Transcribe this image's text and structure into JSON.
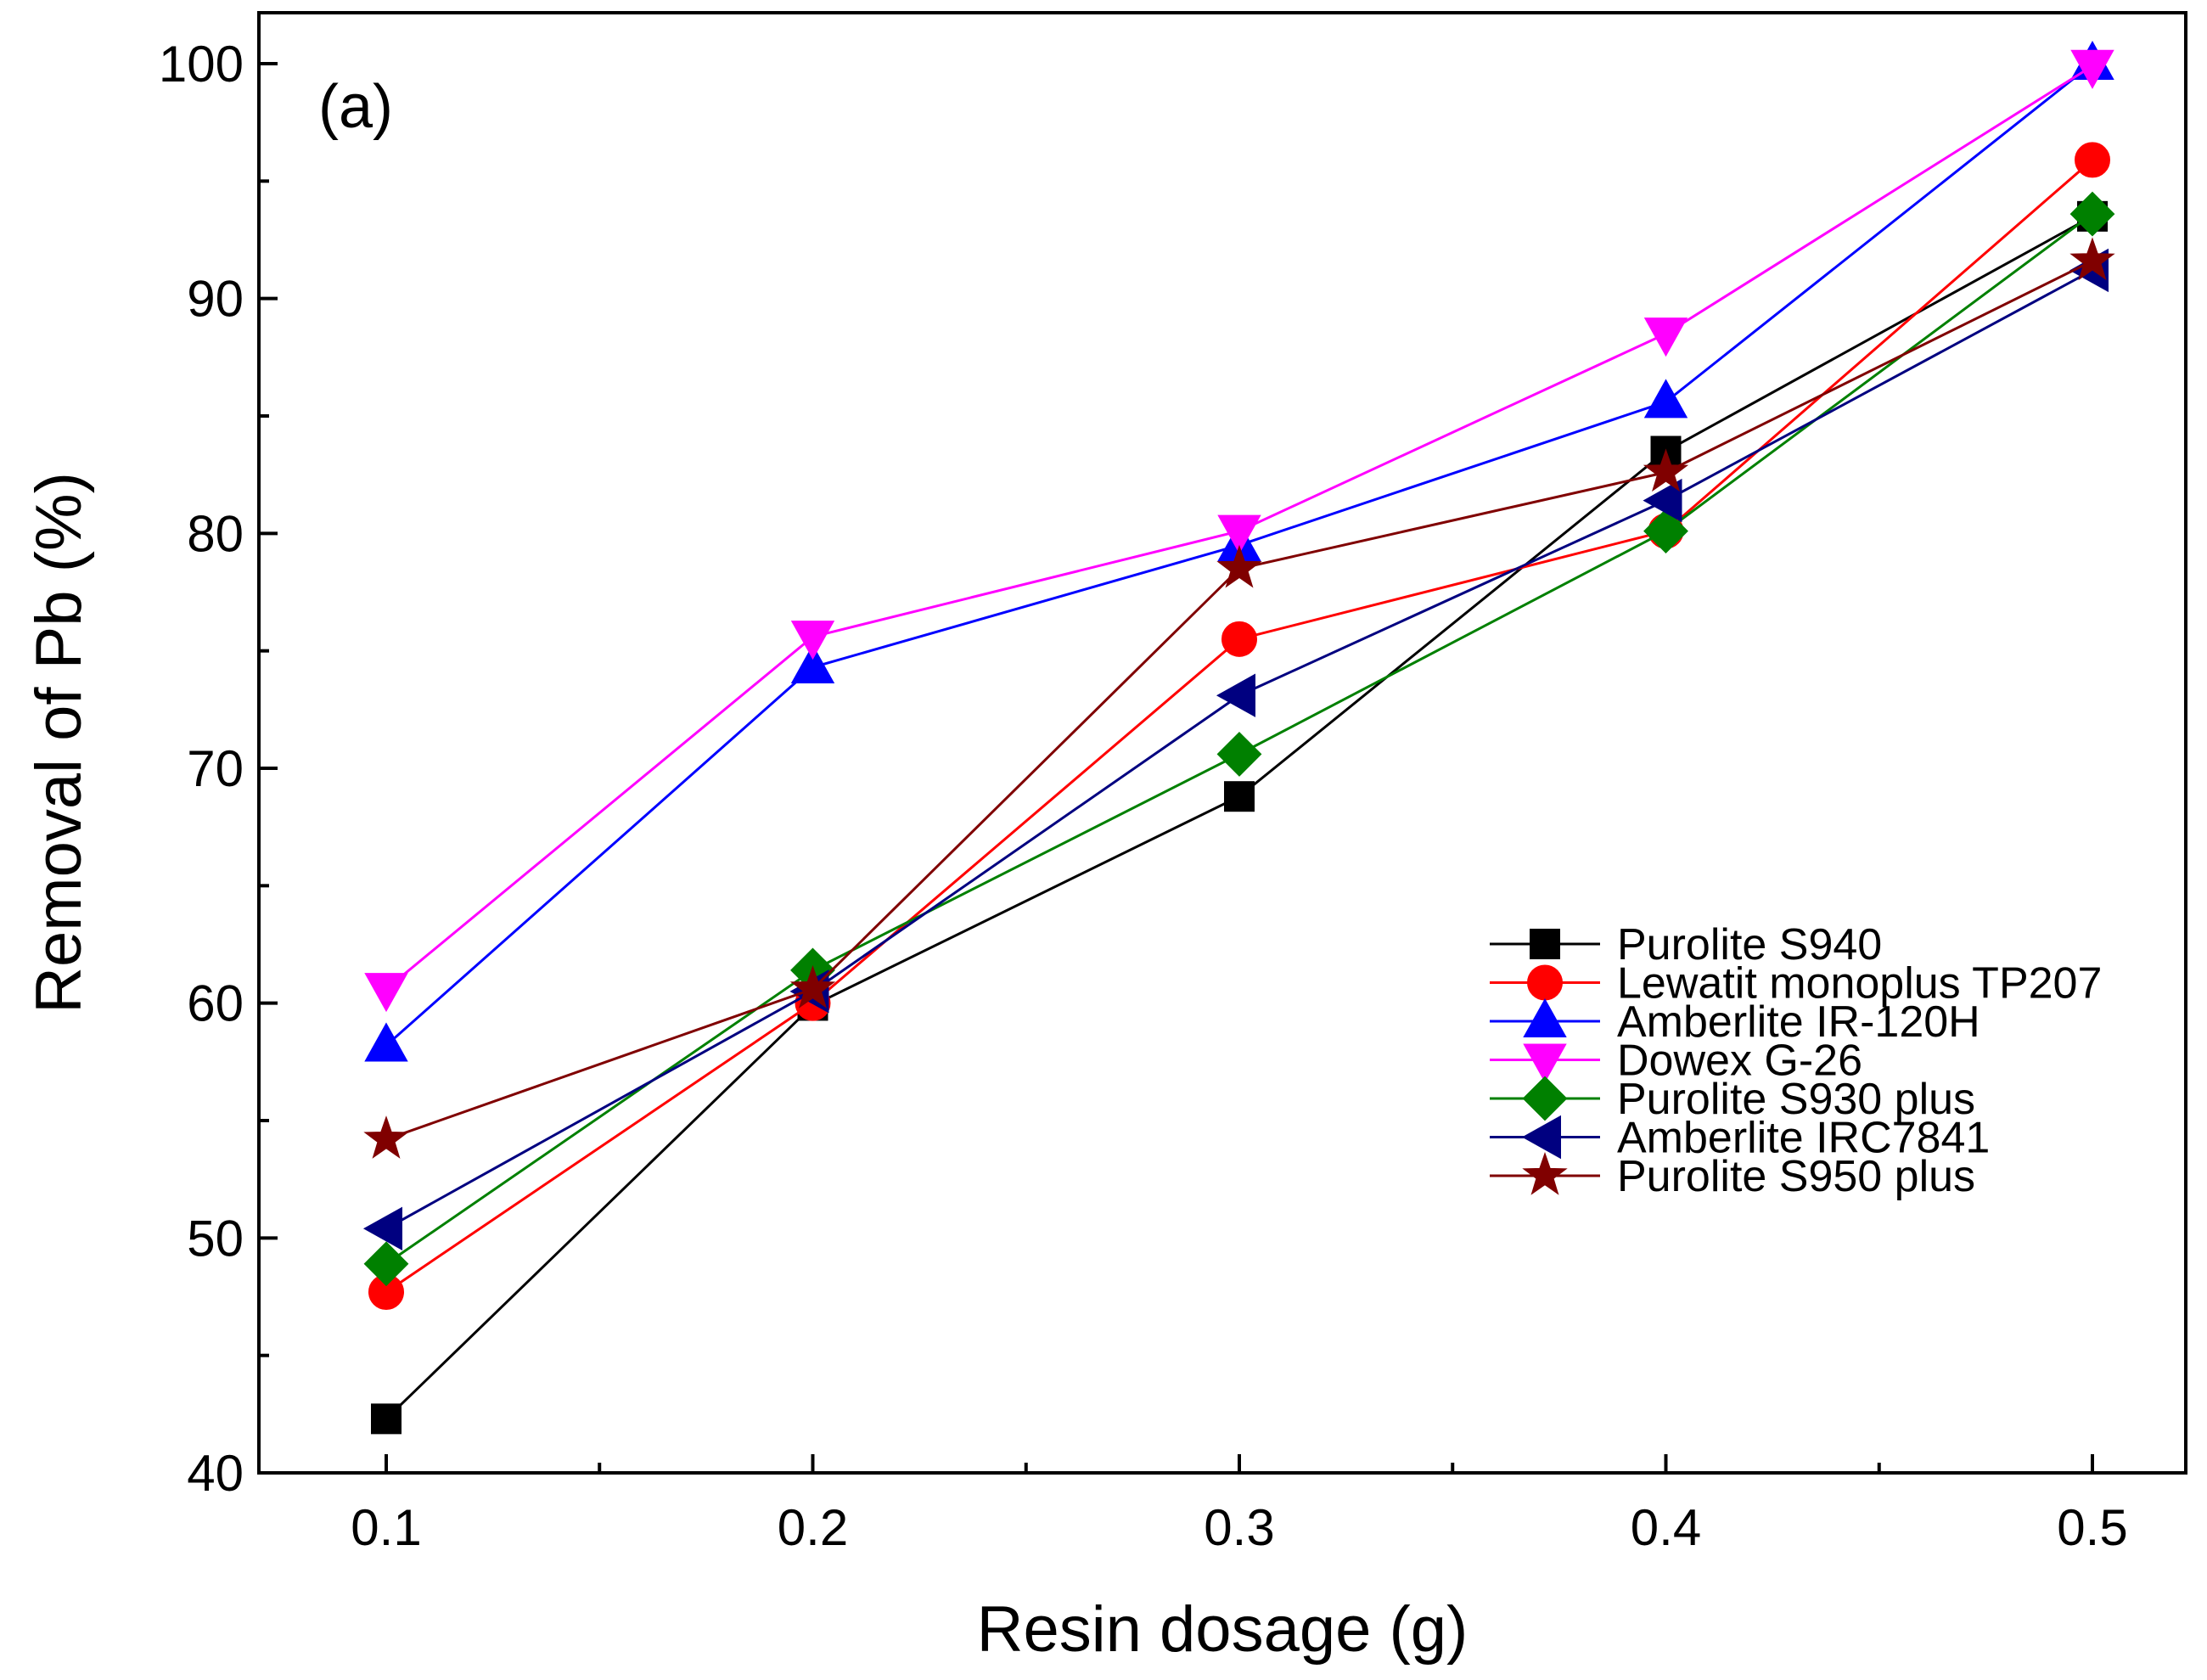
{
  "chart_data": {
    "type": "line",
    "panel_label": "(a)",
    "xlabel": "Resin dosage (g)",
    "ylabel": "Removal of Pb (%)",
    "xlim": [
      0.07,
      0.52
    ],
    "ylim": [
      40,
      100
    ],
    "x": [
      0.1,
      0.2,
      0.3,
      0.4,
      0.5
    ],
    "x_tick_labels": [
      "0.1",
      "0.2",
      "0.3",
      "0.4",
      "0.5"
    ],
    "y_ticks": [
      40,
      50,
      60,
      70,
      80,
      90,
      100
    ],
    "y_tick_labels": [
      "40",
      "50",
      "60",
      "70",
      "80",
      "90",
      "100"
    ],
    "grid": false,
    "legend_position": "right",
    "series": [
      {
        "name": "Purolite S940",
        "color": "#000000",
        "marker": "square",
        "values": [
          42.3,
          59.9,
          68.8,
          83.5,
          93.5
        ]
      },
      {
        "name": "Lewatit monoplus TP207",
        "color": "#ff0000",
        "marker": "circle",
        "values": [
          47.7,
          60.0,
          75.5,
          80.1,
          95.9
        ]
      },
      {
        "name": "Amberlite IR-120H",
        "color": "#0000ff",
        "marker": "triangle-up",
        "values": [
          58.2,
          74.3,
          79.5,
          85.6,
          100.0
        ]
      },
      {
        "name": "Dowex G-26",
        "color": "#ff00ff",
        "marker": "triangle-down",
        "values": [
          60.6,
          75.6,
          80.1,
          88.5,
          99.9
        ]
      },
      {
        "name": "Purolite S930 plus",
        "color": "#008000",
        "marker": "diamond",
        "values": [
          48.9,
          61.4,
          70.6,
          80.1,
          93.6
        ]
      },
      {
        "name": "Amberlite IRC7841",
        "color": "#000080",
        "marker": "triangle-left",
        "values": [
          50.4,
          60.5,
          73.1,
          81.4,
          91.2
        ]
      },
      {
        "name": "Purolite S950 plus",
        "color": "#800000",
        "marker": "star",
        "values": [
          54.2,
          60.6,
          78.5,
          82.6,
          91.6
        ]
      }
    ]
  }
}
